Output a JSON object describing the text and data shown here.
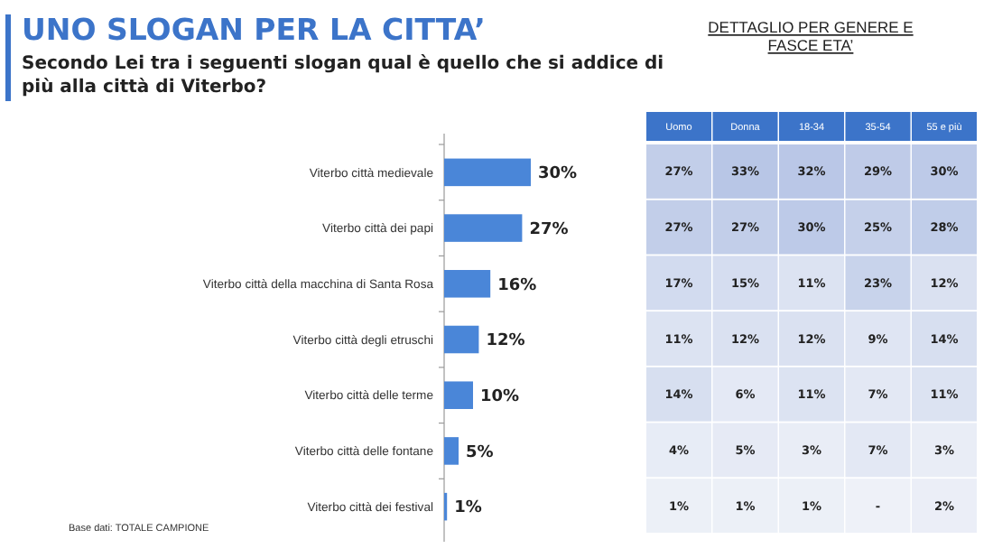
{
  "chart_data": [
    {
      "type": "bar",
      "orientation": "horizontal",
      "title": "UNO SLOGAN PER LA CITTA’",
      "subtitle": "Secondo Lei tra i seguenti slogan qual è quello che si addice di più alla città di Viterbo?",
      "categories": [
        "Viterbo città medievale",
        "Viterbo città dei papi",
        "Viterbo città della macchina di Santa Rosa",
        "Viterbo città degli etruschi",
        "Viterbo città delle terme",
        "Viterbo città delle fontane",
        "Viterbo città dei festival"
      ],
      "values": [
        30,
        27,
        16,
        12,
        10,
        5,
        1
      ],
      "color": "#4a86d8",
      "value_labels": [
        "30%",
        "27%",
        "16%",
        "12%",
        "10%",
        "5%",
        "1%"
      ],
      "annotations": [
        "Base dati: TOTALE CAMPIONE"
      ]
    },
    {
      "type": "heatmap",
      "title": "DETTAGLIO PER GENERE E FASCE ETA’",
      "categories": [
        "Uomo",
        "Donna",
        "18-34",
        "35-54",
        "55 e più"
      ],
      "y_categories": [
        null,
        null,
        null,
        null,
        null,
        null,
        null
      ],
      "cells": [
        [
          27,
          33,
          32,
          29,
          30
        ],
        [
          27,
          27,
          30,
          25,
          28
        ],
        [
          17,
          15,
          11,
          23,
          12
        ],
        [
          11,
          12,
          12,
          9,
          14
        ],
        [
          14,
          6,
          11,
          7,
          11
        ],
        [
          4,
          5,
          3,
          7,
          3
        ],
        [
          1,
          1,
          1,
          null,
          2
        ]
      ],
      "cell_labels": [
        [
          "27%",
          "33%",
          "32%",
          "29%",
          "30%"
        ],
        [
          "27%",
          "27%",
          "30%",
          "25%",
          "28%"
        ],
        [
          "17%",
          "15%",
          "11%",
          "23%",
          "12%"
        ],
        [
          "11%",
          "12%",
          "12%",
          "9%",
          "14%"
        ],
        [
          "14%",
          "6%",
          "11%",
          "7%",
          "11%"
        ],
        [
          "4%",
          "5%",
          "3%",
          "7%",
          "3%"
        ],
        [
          "1%",
          "1%",
          "1%",
          "-",
          "2%"
        ]
      ]
    }
  ]
}
